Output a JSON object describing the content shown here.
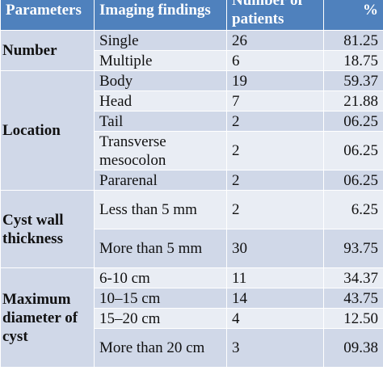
{
  "header": {
    "parameters": "Parameters",
    "imaging_findings": "Imaging findings",
    "number_of_patients": "Number of patients",
    "percent": "%"
  },
  "groups": [
    {
      "parameter": "Number",
      "rows": [
        {
          "finding": "Single",
          "patients": "26",
          "percent": "81.25"
        },
        {
          "finding": "Multiple",
          "patients": "6",
          "percent": "18.75"
        }
      ]
    },
    {
      "parameter": "Location",
      "rows": [
        {
          "finding": "Body",
          "patients": "19",
          "percent": "59.37"
        },
        {
          "finding": "Head",
          "patients": "7",
          "percent": "21.88"
        },
        {
          "finding": "Tail",
          "patients": "2",
          "percent": "06.25"
        },
        {
          "finding": "Transverse mesocolon",
          "patients": "2",
          "percent": "06.25"
        },
        {
          "finding": "Pararenal",
          "patients": "2",
          "percent": "06.25"
        }
      ]
    },
    {
      "parameter": "Cyst wall thickness",
      "rows": [
        {
          "finding": "Less than 5 mm",
          "patients": "2",
          "percent": "6.25"
        },
        {
          "finding": "More than 5 mm",
          "patients": "30",
          "percent": "93.75"
        }
      ]
    },
    {
      "parameter": "Maximum diameter of cyst",
      "rows": [
        {
          "finding": "6-10 cm",
          "patients": "11",
          "percent": "34.37"
        },
        {
          "finding": "10–15 cm",
          "patients": "14",
          "percent": "43.75"
        },
        {
          "finding": "15–20 cm",
          "patients": "4",
          "percent": "12.50"
        },
        {
          "finding": "More than 20 cm",
          "patients": "3",
          "percent": "09.38"
        }
      ]
    }
  ]
}
